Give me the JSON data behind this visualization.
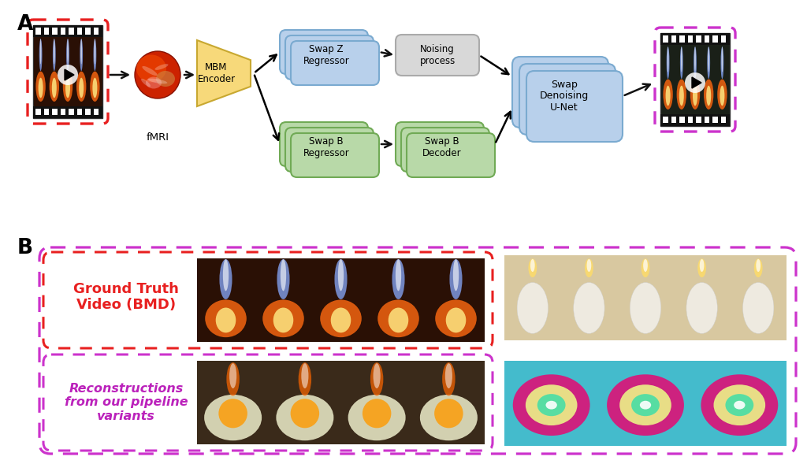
{
  "bg_color": "#ffffff",
  "panel_A_label": "A",
  "panel_B_label": "B",
  "box_blue_face": "#b8d0eb",
  "box_blue_edge": "#7aaad0",
  "box_green_face": "#b8d9a8",
  "box_green_edge": "#70aa55",
  "box_gray_face": "#d8d8d8",
  "box_gray_edge": "#aaaaaa",
  "box_yellow_face": "#f7d97a",
  "box_yellow_edge": "#c8a830",
  "dashed_red": "#e82020",
  "dashed_purple": "#cc33cc",
  "text_red": "#e82020",
  "text_purple": "#bb22bb",
  "arrow_color": "#111111",
  "gt_label": "Ground Truth\nVideo (BMD)",
  "recon_label": "Reconstructions\nfrom our pipeline\nvariants",
  "node_swap_z": "Swap Z\nRegressor",
  "node_swap_b_reg": "Swap B\nRegressor",
  "node_swap_b_dec": "Swap B\nDecoder",
  "node_noising": "Noising\nprocess",
  "node_denoising": "Swap\nDenoising\nU-Net",
  "node_mbm": "MBM\nEncoder",
  "node_fmri": "fMRI"
}
